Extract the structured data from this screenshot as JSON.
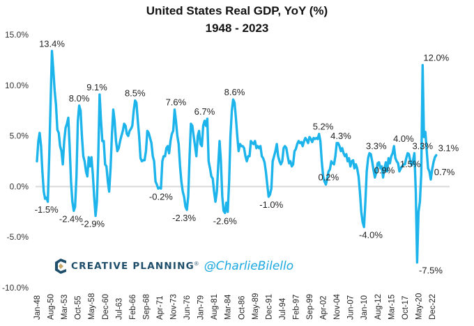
{
  "chart_data": {
    "type": "line",
    "title": "United States Real GDP, YoY (%)",
    "subtitle": "1948 - 2023",
    "xlabel": "",
    "ylabel": "",
    "ylim": [
      -10,
      15
    ],
    "yticks": [
      15,
      10,
      5,
      0,
      -5,
      -10
    ],
    "ytick_labels": [
      "15.0%",
      "10.0%",
      "5.0%",
      "0.0%",
      "-5.0%",
      "-10.0%"
    ],
    "xtick_labels": [
      "Jan-48",
      "Aug-50",
      "Mar-53",
      "Oct-55",
      "May-58",
      "Dec-60",
      "Jul-63",
      "Feb-66",
      "Sep-68",
      "Apr-71",
      "Nov-73",
      "Jun-76",
      "Jan-79",
      "Aug-81",
      "Mar-84",
      "Oct-86",
      "May-89",
      "Dec-91",
      "Jul-94",
      "Feb-97",
      "Sep-99",
      "Apr-02",
      "Nov-04",
      "Jun-07",
      "Jan-10",
      "Aug-12",
      "Mar-15",
      "Oct-17",
      "May-20",
      "Dec-22"
    ],
    "x_start": "1948 Q1",
    "frequency": "quarterly",
    "grid": false,
    "zero_line": true,
    "line_color": "#1cb4eb",
    "series": [
      {
        "name": "US Real GDP YoY (%)",
        "values": [
          2.5,
          4.5,
          5.3,
          4.0,
          1.5,
          -0.5,
          -1.2,
          -1.1,
          -1.5,
          3.0,
          8.0,
          13.4,
          11.5,
          9.5,
          8.0,
          5.6,
          5.3,
          4.0,
          3.5,
          2.2,
          4.5,
          5.8,
          6.2,
          6.8,
          4.0,
          0.5,
          -1.5,
          -2.4,
          -2.0,
          1.0,
          6.5,
          8.0,
          7.5,
          5.0,
          3.0,
          2.5,
          1.5,
          1.0,
          2.9,
          2.0,
          2.9,
          1.2,
          -1.0,
          -2.9,
          -1.5,
          3.0,
          9.1,
          6.5,
          4.5,
          4.5,
          2.2,
          2.0,
          0.5,
          -0.5,
          1.8,
          5.0,
          7.6,
          6.5,
          4.5,
          3.5,
          3.8,
          4.5,
          5.0,
          5.5,
          6.2,
          6.0,
          5.2,
          5.0,
          5.5,
          5.7,
          6.0,
          7.5,
          8.5,
          8.3,
          6.5,
          5.0,
          2.8,
          2.5,
          2.6,
          2.6,
          3.5,
          5.5,
          5.3,
          4.8,
          4.3,
          3.0,
          2.5,
          0.5,
          0.2,
          -0.2,
          -0.1,
          -0.2,
          2.5,
          3.0,
          3.0,
          3.8,
          4.0,
          3.3,
          4.5,
          5.2,
          5.5,
          7.6,
          6.5,
          5.0,
          4.2,
          2.0,
          0.5,
          -0.5,
          -1.0,
          -2.0,
          -2.3,
          -1.0,
          3.0,
          6.2,
          6.0,
          5.0,
          4.0,
          3.0,
          5.0,
          5.5,
          4.2,
          4.0,
          6.0,
          6.5,
          6.0,
          6.7,
          2.5,
          1.8,
          1.0,
          0.8,
          -0.5,
          -1.5,
          -0.5,
          2.0,
          4.5,
          2.5,
          -1.0,
          -2.4,
          -2.6,
          -1.6,
          -2.5,
          0.5,
          5.0,
          7.5,
          8.6,
          8.3,
          6.8,
          5.0,
          3.5,
          4.2,
          4.0,
          4.0,
          3.8,
          3.0,
          2.5,
          3.0,
          3.0,
          4.5,
          4.3,
          4.2,
          4.5,
          3.8,
          4.0,
          3.8,
          4.0,
          3.0,
          2.8,
          2.4,
          1.5,
          0.2,
          -1.0,
          -0.8,
          -0.2,
          2.5,
          3.0,
          3.5,
          4.2,
          3.0,
          2.5,
          2.2,
          2.5,
          3.8,
          4.0,
          3.8,
          3.0,
          2.3,
          2.5,
          2.0,
          2.2,
          3.5,
          3.7,
          4.2,
          4.5,
          4.3,
          4.4,
          4.0,
          4.5,
          4.8,
          4.6,
          4.3,
          4.9,
          4.7,
          4.4,
          4.8,
          4.7,
          4.8,
          4.7,
          5.2,
          4.5,
          2.5,
          1.0,
          0.5,
          0.2,
          0.8,
          1.5,
          1.7,
          2.5,
          2.3,
          2.2,
          3.0,
          4.3,
          4.3,
          4.0,
          3.5,
          3.8,
          3.3,
          3.0,
          3.2,
          2.5,
          2.8,
          2.0,
          2.5,
          2.6,
          1.8,
          2.2,
          1.8,
          1.0,
          -0.5,
          -2.5,
          -3.5,
          -4.0,
          -1.5,
          1.5,
          2.8,
          3.3,
          3.2,
          2.5,
          1.6,
          0.9,
          1.4,
          2.3,
          2.4,
          1.8,
          2.0,
          0.9,
          1.8,
          2.4,
          1.5,
          2.8,
          2.3,
          3.0,
          3.3,
          4.0,
          2.8,
          2.5,
          2.3,
          1.5,
          1.8,
          2.0,
          2.2,
          2.2,
          2.8,
          3.3,
          3.2,
          2.5,
          2.1,
          2.6,
          3.3,
          -0.5,
          -7.5,
          -2.5,
          -1.5,
          1.2,
          12.0,
          4.9,
          5.4,
          3.6,
          1.8,
          1.5,
          0.7,
          1.7,
          2.4,
          2.9,
          3.1
        ]
      }
    ],
    "annotations": [
      {
        "label": "13.4%",
        "value": 13.4,
        "date": "Q4 1950"
      },
      {
        "label": "-1.5%",
        "value": -1.5,
        "date": "Q4 1949"
      },
      {
        "label": "8.0%",
        "value": 8.0,
        "date": "Q4 1955"
      },
      {
        "label": "-2.4%",
        "value": -2.4,
        "date": "Q2 1954"
      },
      {
        "label": "9.1%",
        "value": 9.1,
        "date": "Q1 1959"
      },
      {
        "label": "-2.9%",
        "value": -2.9,
        "date": "Q2 1958"
      },
      {
        "label": "8.5%",
        "value": 8.5,
        "date": "Q1 1966"
      },
      {
        "label": "-0.2%",
        "value": -0.2,
        "date": "Q4 1970"
      },
      {
        "label": "7.6%",
        "value": 7.6,
        "date": "Q3 1973"
      },
      {
        "label": "-2.3%",
        "value": -2.3,
        "date": "Q1 1975"
      },
      {
        "label": "6.7%",
        "value": 6.7,
        "date": "Q4 1978"
      },
      {
        "label": "-2.6%",
        "value": -2.6,
        "date": "Q3 1982"
      },
      {
        "label": "8.6%",
        "value": 8.6,
        "date": "Q2 1984"
      },
      {
        "label": "-1.0%",
        "value": -1.0,
        "date": "Q1 1991"
      },
      {
        "label": "5.2%",
        "value": 5.2,
        "date": "Q3 2000"
      },
      {
        "label": "0.2%",
        "value": 0.2,
        "date": "Q3 2001"
      },
      {
        "label": "4.3%",
        "value": 4.3,
        "date": "Q4 2003"
      },
      {
        "label": "-4.0%",
        "value": -4.0,
        "date": "Q2 2009"
      },
      {
        "label": "3.3%",
        "value": 3.3,
        "date": "Q2 2010"
      },
      {
        "label": "0.9%",
        "value": 0.9,
        "date": "Q4 2011"
      },
      {
        "label": "4.0%",
        "value": 4.0,
        "date": "Q2 2015"
      },
      {
        "label": "1.5%",
        "value": 1.5,
        "date": "Q3 2016"
      },
      {
        "label": "3.3%",
        "value": 3.3,
        "date": "Q4 2018"
      },
      {
        "label": "-7.5%",
        "value": -7.5,
        "date": "Q2 2020"
      },
      {
        "label": "12.0%",
        "value": 12.0,
        "date": "Q2 2021"
      },
      {
        "label": "0.7%",
        "value": 0.7,
        "date": "Q4 2022"
      },
      {
        "label": "3.1%",
        "value": 3.1,
        "date": "Q3 2023"
      }
    ]
  },
  "branding": {
    "company": "CREATIVE PLANNING",
    "registered_mark": "®",
    "handle": "@CharlieBilello",
    "logo_colors": {
      "dark": "#1f4e6b",
      "gold": "#c8a96a"
    }
  }
}
